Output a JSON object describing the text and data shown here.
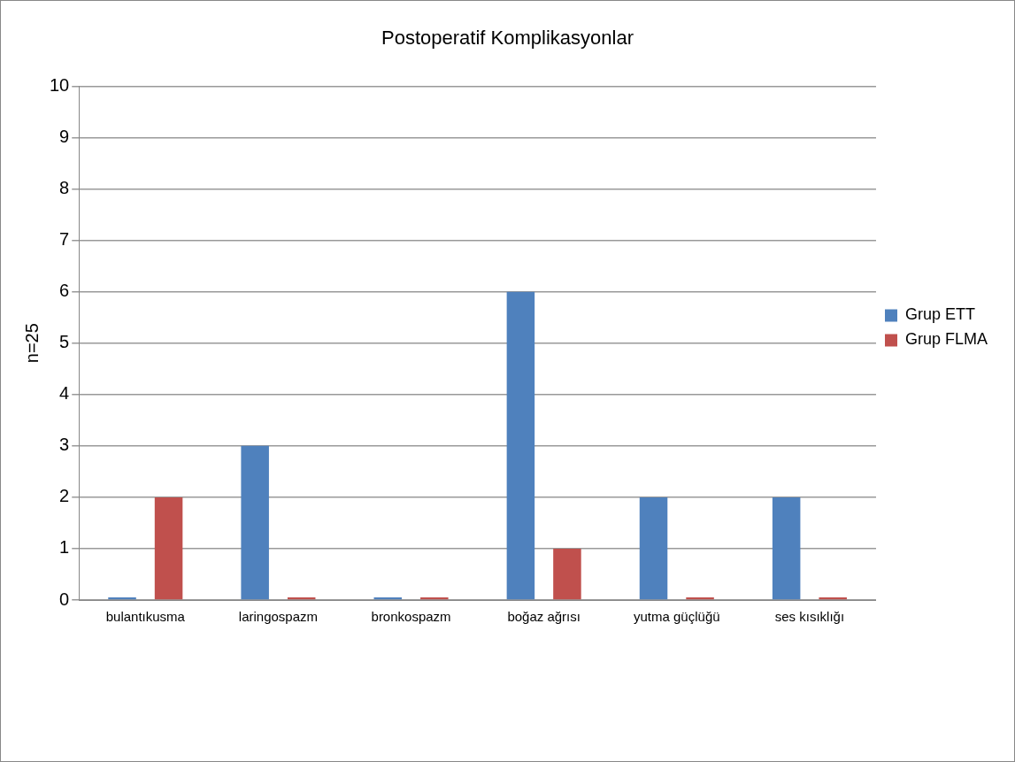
{
  "chart_data": {
    "type": "bar",
    "title": "Postoperatif Komplikasyonlar",
    "ylabel": "n=25",
    "categories": [
      "bulantıkusma",
      "laringospazm",
      "bronkospazm",
      "boğaz ağrısı",
      "yutma güçlüğü",
      "ses kısıklığı"
    ],
    "series": [
      {
        "name": "Grup ETT",
        "color": "#4f81bd",
        "values": [
          0,
          3,
          0,
          6,
          2,
          2
        ]
      },
      {
        "name": "Grup FLMA",
        "color": "#c0504d",
        "values": [
          2,
          0,
          0,
          1,
          0,
          0
        ]
      }
    ],
    "ylim": [
      0,
      10
    ],
    "yticks": [
      0,
      1,
      2,
      3,
      4,
      5,
      6,
      7,
      8,
      9,
      10
    ],
    "grid": "y",
    "legend": "right"
  }
}
